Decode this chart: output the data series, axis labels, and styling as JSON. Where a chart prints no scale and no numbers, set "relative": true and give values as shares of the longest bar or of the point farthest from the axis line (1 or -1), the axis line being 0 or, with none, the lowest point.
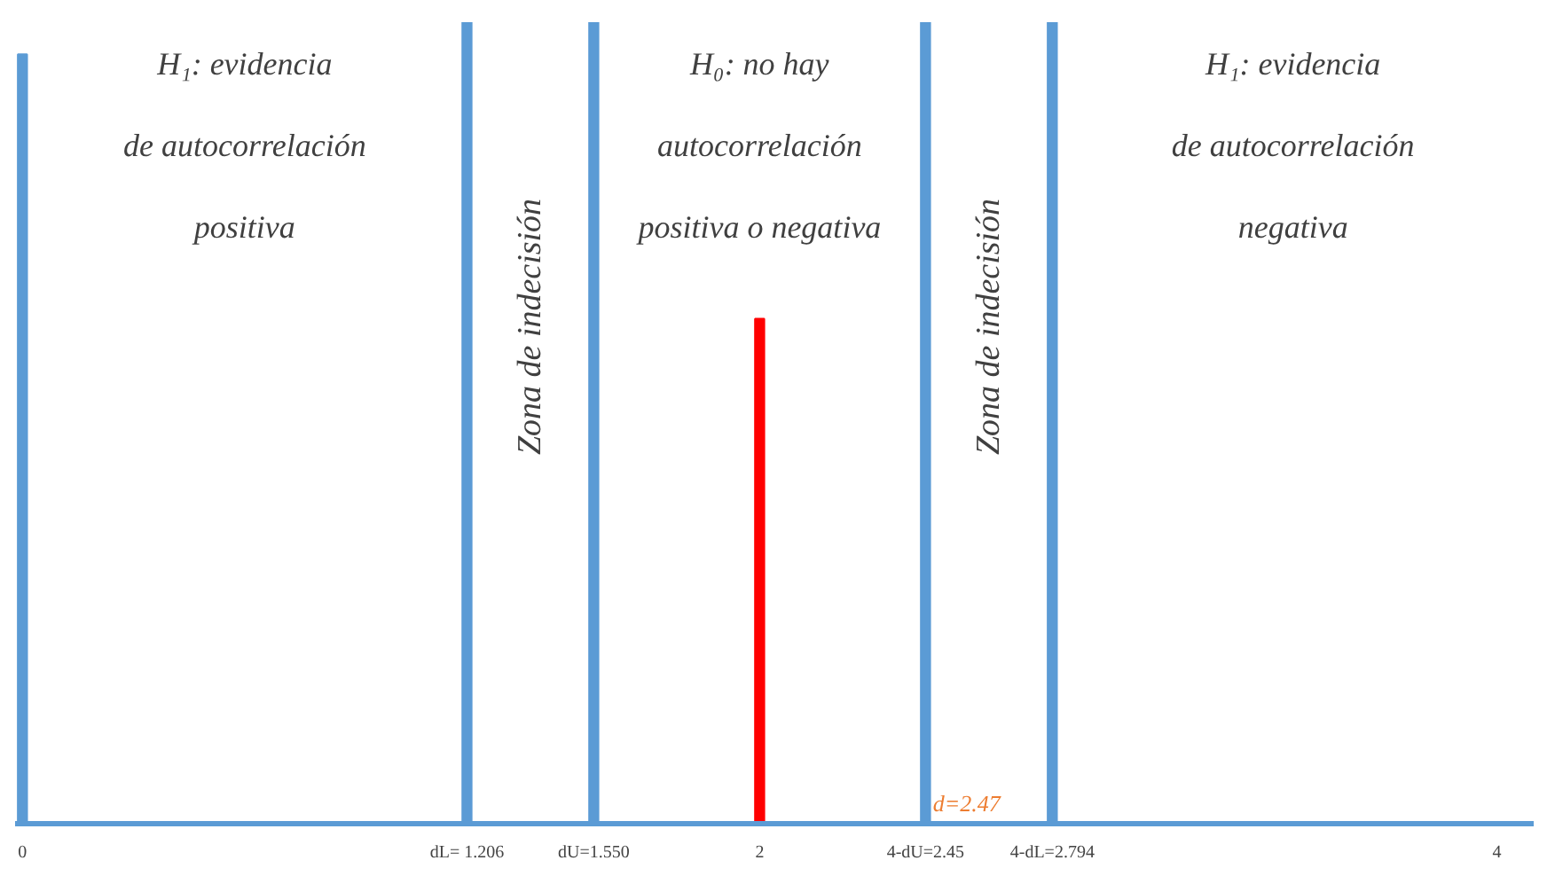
{
  "chart_data": {
    "type": "bar",
    "relative": true,
    "grid": false,
    "series": [
      {
        "color": "#5b9bd5",
        "x": [
          0,
          1.206,
          1.55,
          2.45,
          2.794
        ],
        "values": [
          0.96,
          1,
          1,
          1,
          1
        ]
      },
      {
        "color": "#ff0000",
        "x": [
          2
        ],
        "values": [
          0.63
        ]
      }
    ],
    "xlim": [
      -0.02,
      4.1
    ],
    "xticks": [
      0,
      {
        "value": 1.206,
        "label": "dL= 1.206"
      },
      {
        "value": 1.55,
        "label": "dU=1.550"
      },
      2,
      {
        "value": 2.45,
        "label": "4-dU=2.45"
      },
      {
        "value": 2.794,
        "label": "4-dL=2.794"
      },
      4
    ],
    "annotations": [
      "H₁: evidencia\nde autocorrelación\npositiva",
      "Zona de indecisión",
      "H₀: no hay\nautocorrelación\npositiva o negativa",
      "Zona de indecisión",
      "H₁: evidencia\nde autocorrelación\nnegativa",
      {
        "text": "d=2.47",
        "x": 2.47,
        "y": 0
      }
    ]
  }
}
